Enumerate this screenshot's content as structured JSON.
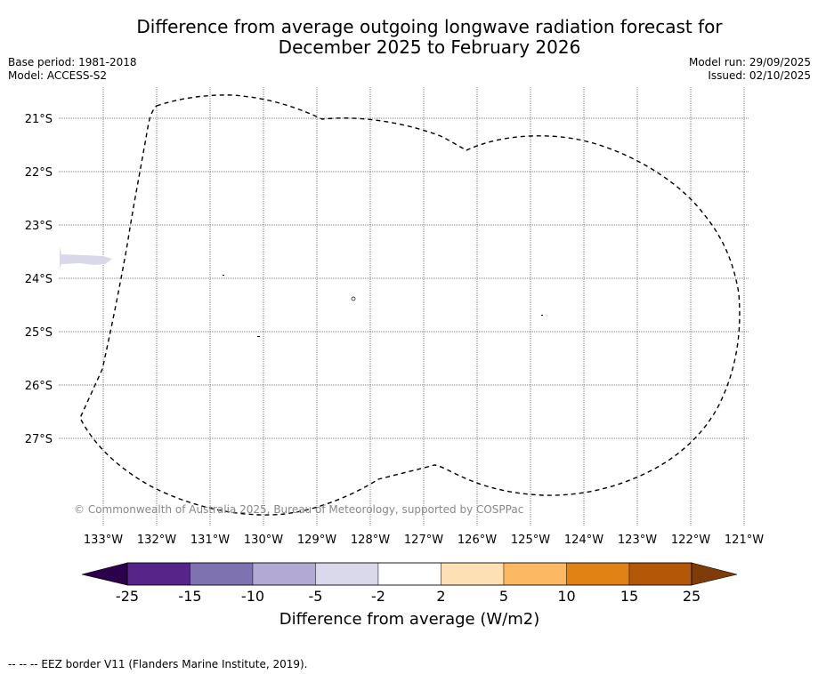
{
  "title": {
    "line1": "Difference from average outgoing longwave radiation forecast for",
    "line2": "December 2025 to February 2026"
  },
  "meta": {
    "base_period": "Base period: 1981-2018",
    "model": "Model: ACCESS-S2",
    "model_run": "Model run: 29/09/2025",
    "issued": "Issued: 02/10/2025"
  },
  "map": {
    "lon_labels": [
      "133°W",
      "132°W",
      "131°W",
      "130°W",
      "129°W",
      "128°W",
      "127°W",
      "126°W",
      "125°W",
      "124°W",
      "123°W",
      "122°W",
      "121°W"
    ],
    "lat_labels": [
      "21°S",
      "22°S",
      "23°S",
      "24°S",
      "25°S",
      "26°S",
      "27°S"
    ],
    "copyright": "© Commonwealth of Australia 2025, Bureau of Meteorology, supported by COSPPac",
    "eez_border_style": "dashed",
    "anomaly_patch_color": "#d8d8ea"
  },
  "colorbar": {
    "label": "Difference from average (W/m2)",
    "ticks": [
      "-25",
      "-15",
      "-10",
      "-5",
      "-2",
      "2",
      "5",
      "10",
      "15",
      "25"
    ],
    "colors": [
      "#57248a",
      "#7e72b0",
      "#b2aad4",
      "#d9d9eb",
      "#ffffff",
      "#fee0b5",
      "#fdb863",
      "#e08214",
      "#b35806"
    ],
    "under_color": "#2d004b",
    "over_color": "#7f3b08"
  },
  "footnote": "--  --  -- EEZ border V11 (Flanders Marine Institute, 2019)."
}
